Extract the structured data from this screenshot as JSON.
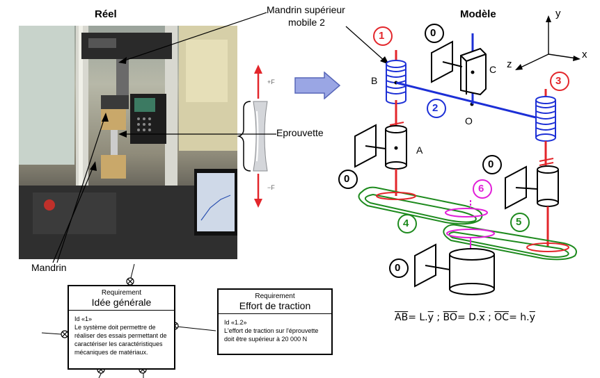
{
  "left": {
    "title": "Réel",
    "label_chuck_top_line1": "Mandrin supérieur",
    "label_chuck_top_line2": "mobile 2",
    "label_specimen": "Eprouvette",
    "label_chuck": "Mandrin",
    "force_plus": "+F",
    "force_minus": "−F"
  },
  "right": {
    "title": "Modèle",
    "axes": {
      "x": "x",
      "y": "y",
      "z": "z"
    },
    "points": {
      "A": "A",
      "B": "B",
      "C": "C",
      "O": "O"
    },
    "parts": [
      {
        "num": "1",
        "color": "#e3262b"
      },
      {
        "num": "0",
        "color": "#000000"
      },
      {
        "num": "2",
        "color": "#1c2fd6"
      },
      {
        "num": "3",
        "color": "#e3262b"
      },
      {
        "num": "0",
        "color": "#000000"
      },
      {
        "num": "0",
        "color": "#000000"
      },
      {
        "num": "6",
        "color": "#e11fd8"
      },
      {
        "num": "4",
        "color": "#1d8a1d"
      },
      {
        "num": "5",
        "color": "#1d8a1d"
      },
      {
        "num": "0",
        "color": "#000000"
      }
    ],
    "formula": {
      "v1": "AB",
      "e1": "= L.",
      "u1": "y",
      "sep1": " ; ",
      "v2": "BO",
      "e2": "= D.",
      "u2": "x",
      "sep2": " ; ",
      "v3": "OC",
      "e3": "= h.",
      "u3": "y"
    }
  },
  "requirements": [
    {
      "stereotype": "Requirement",
      "name": "Idée générale",
      "id": "Id «1»",
      "text": [
        "Le système doit permettre de",
        "réaliser des essais permettant de",
        "caractériser les caractéristiques",
        "mécaniques de matériaux."
      ]
    },
    {
      "stereotype": "Requirement",
      "name": "Effort de traction",
      "id": "Id «1.2»",
      "text": [
        "L'effort de traction sur l'éprouvette",
        "doit être supérieur à 20 000 N"
      ]
    }
  ]
}
